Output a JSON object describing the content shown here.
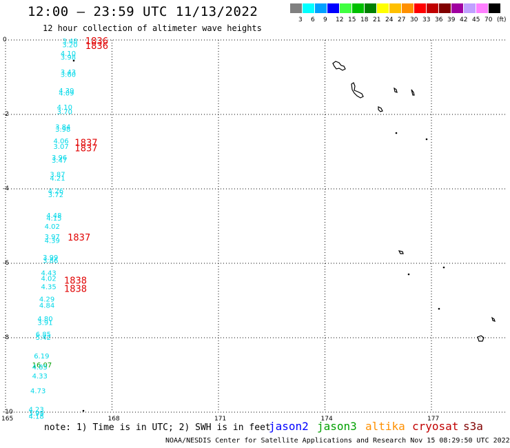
{
  "header": {
    "title": "12:00 – 23:59 UTC 11/13/2022",
    "subtitle": "12 hour collection of altimeter wave heights"
  },
  "legend": {
    "colors": [
      "#808080",
      "#00ffff",
      "#00a0ff",
      "#0000ff",
      "#40ff40",
      "#00c000",
      "#008000",
      "#ffff00",
      "#ffc000",
      "#ff9000",
      "#ff0000",
      "#c00000",
      "#800000",
      "#a000a0",
      "#c0a0ff",
      "#ff80ff",
      "#000000"
    ],
    "labels": [
      "3",
      "6",
      "9",
      "12",
      "15",
      "18",
      "21",
      "24",
      "27",
      "30",
      "33",
      "36",
      "39",
      "42",
      "45",
      "70",
      "(ft)"
    ]
  },
  "map": {
    "x_ticks": [
      "165",
      "168",
      "171",
      "174",
      "177"
    ],
    "y_ticks": [
      "0",
      "-2",
      "-4",
      "-6",
      "-8",
      "-10"
    ],
    "wave_heights": [
      {
        "lon": 166.6,
        "lat": -0.02,
        "value": "3.48",
        "sat": "cryosat"
      },
      {
        "lon": 166.6,
        "lat": -0.12,
        "value": "3.20",
        "sat": "cryosat"
      },
      {
        "lon": 166.55,
        "lat": -0.35,
        "value": "4.10",
        "sat": "cryosat"
      },
      {
        "lon": 166.55,
        "lat": -0.45,
        "value": "3.98",
        "sat": "cryosat"
      },
      {
        "lon": 166.55,
        "lat": -0.85,
        "value": "3.43",
        "sat": "cryosat"
      },
      {
        "lon": 166.55,
        "lat": -0.92,
        "value": "3.60",
        "sat": "cryosat"
      },
      {
        "lon": 166.5,
        "lat": -1.35,
        "value": "4.39",
        "sat": "cryosat"
      },
      {
        "lon": 166.5,
        "lat": -1.42,
        "value": "4.09",
        "sat": "cryosat"
      },
      {
        "lon": 166.45,
        "lat": -1.8,
        "value": "4.10",
        "sat": "cryosat"
      },
      {
        "lon": 166.45,
        "lat": -1.92,
        "value": "3.70",
        "sat": "cryosat"
      },
      {
        "lon": 166.4,
        "lat": -2.32,
        "value": "3.84",
        "sat": "cryosat"
      },
      {
        "lon": 166.4,
        "lat": -2.39,
        "value": "3.98",
        "sat": "cryosat"
      },
      {
        "lon": 166.35,
        "lat": -2.7,
        "value": "4.06",
        "sat": "cryosat"
      },
      {
        "lon": 166.35,
        "lat": -2.85,
        "value": "3.07",
        "sat": "cryosat"
      },
      {
        "lon": 166.3,
        "lat": -3.15,
        "value": "3.96",
        "sat": "cryosat"
      },
      {
        "lon": 166.3,
        "lat": -3.22,
        "value": "3.47",
        "sat": "cryosat"
      },
      {
        "lon": 166.25,
        "lat": -3.6,
        "value": "3.87",
        "sat": "cryosat"
      },
      {
        "lon": 166.25,
        "lat": -3.7,
        "value": "4.21",
        "sat": "cryosat"
      },
      {
        "lon": 166.2,
        "lat": -4.05,
        "value": "4.26",
        "sat": "cryosat"
      },
      {
        "lon": 166.2,
        "lat": -4.15,
        "value": "3.72",
        "sat": "cryosat"
      },
      {
        "lon": 166.15,
        "lat": -4.7,
        "value": "4.48",
        "sat": "cryosat"
      },
      {
        "lon": 166.15,
        "lat": -4.78,
        "value": "4.15",
        "sat": "cryosat"
      },
      {
        "lon": 166.1,
        "lat": -5.0,
        "value": "4.02",
        "sat": "cryosat"
      },
      {
        "lon": 166.1,
        "lat": -5.28,
        "value": "3.97",
        "sat": "cryosat"
      },
      {
        "lon": 166.1,
        "lat": -5.38,
        "value": "4.39",
        "sat": "cryosat"
      },
      {
        "lon": 166.05,
        "lat": -5.83,
        "value": "3.99",
        "sat": "cryosat"
      },
      {
        "lon": 166.05,
        "lat": -5.92,
        "value": "3.86",
        "sat": "cryosat"
      },
      {
        "lon": 166.0,
        "lat": -6.25,
        "value": "4.43",
        "sat": "cryosat"
      },
      {
        "lon": 166.0,
        "lat": -6.4,
        "value": "4.02",
        "sat": "cryosat"
      },
      {
        "lon": 166.0,
        "lat": -6.62,
        "value": "4.35",
        "sat": "cryosat"
      },
      {
        "lon": 165.95,
        "lat": -6.95,
        "value": "4.29",
        "sat": "cryosat"
      },
      {
        "lon": 165.95,
        "lat": -7.12,
        "value": "4.84",
        "sat": "cryosat"
      },
      {
        "lon": 165.9,
        "lat": -7.48,
        "value": "4.80",
        "sat": "cryosat"
      },
      {
        "lon": 165.9,
        "lat": -7.58,
        "value": "3.91",
        "sat": "cryosat"
      },
      {
        "lon": 165.85,
        "lat": -7.9,
        "value": "6.85",
        "sat": "cryosat"
      },
      {
        "lon": 165.85,
        "lat": -7.98,
        "value": "5.42",
        "sat": "cryosat"
      },
      {
        "lon": 165.8,
        "lat": -8.48,
        "value": "6.19",
        "sat": "cryosat"
      },
      {
        "lon": 165.75,
        "lat": -8.72,
        "value": "16.07",
        "sat": "jason3"
      },
      {
        "lon": 165.75,
        "lat": -8.78,
        "value": "4.85",
        "sat": "cryosat"
      },
      {
        "lon": 165.75,
        "lat": -9.02,
        "value": "4.33",
        "sat": "cryosat"
      },
      {
        "lon": 165.7,
        "lat": -9.42,
        "value": "4.73",
        "sat": "cryosat"
      },
      {
        "lon": 165.65,
        "lat": -9.92,
        "value": "4.23",
        "sat": "cryosat"
      },
      {
        "lon": 165.65,
        "lat": -10.02,
        "value": "3.99",
        "sat": "cryosat"
      },
      {
        "lon": 165.65,
        "lat": -10.1,
        "value": "4.18",
        "sat": "cryosat"
      }
    ],
    "times": [
      {
        "lon": 167.25,
        "lat": -0.02,
        "value": "1836"
      },
      {
        "lon": 167.25,
        "lat": -0.15,
        "value": "1836"
      },
      {
        "lon": 166.95,
        "lat": -2.75,
        "value": "1837"
      },
      {
        "lon": 166.95,
        "lat": -2.9,
        "value": "1837"
      },
      {
        "lon": 166.75,
        "lat": -5.3,
        "value": "1837"
      },
      {
        "lon": 166.65,
        "lat": -6.45,
        "value": "1838"
      },
      {
        "lon": 166.65,
        "lat": -6.68,
        "value": "1838"
      }
    ]
  },
  "footer": {
    "note": "note: 1) Time is in UTC; 2) SWH is in feet",
    "satellites": [
      {
        "name": "jason2",
        "color": "#0000ff"
      },
      {
        "name": "jason3",
        "color": "#00a000"
      },
      {
        "name": "altika",
        "color": "#ff9000"
      },
      {
        "name": "cryosat",
        "color": "#c00000"
      },
      {
        "name": "s3a",
        "color": "#800000"
      }
    ],
    "credit": "NOAA/NESDIS Center for Satellite Applications and Research   Nov 15 08:29:50 UTC 2022"
  }
}
